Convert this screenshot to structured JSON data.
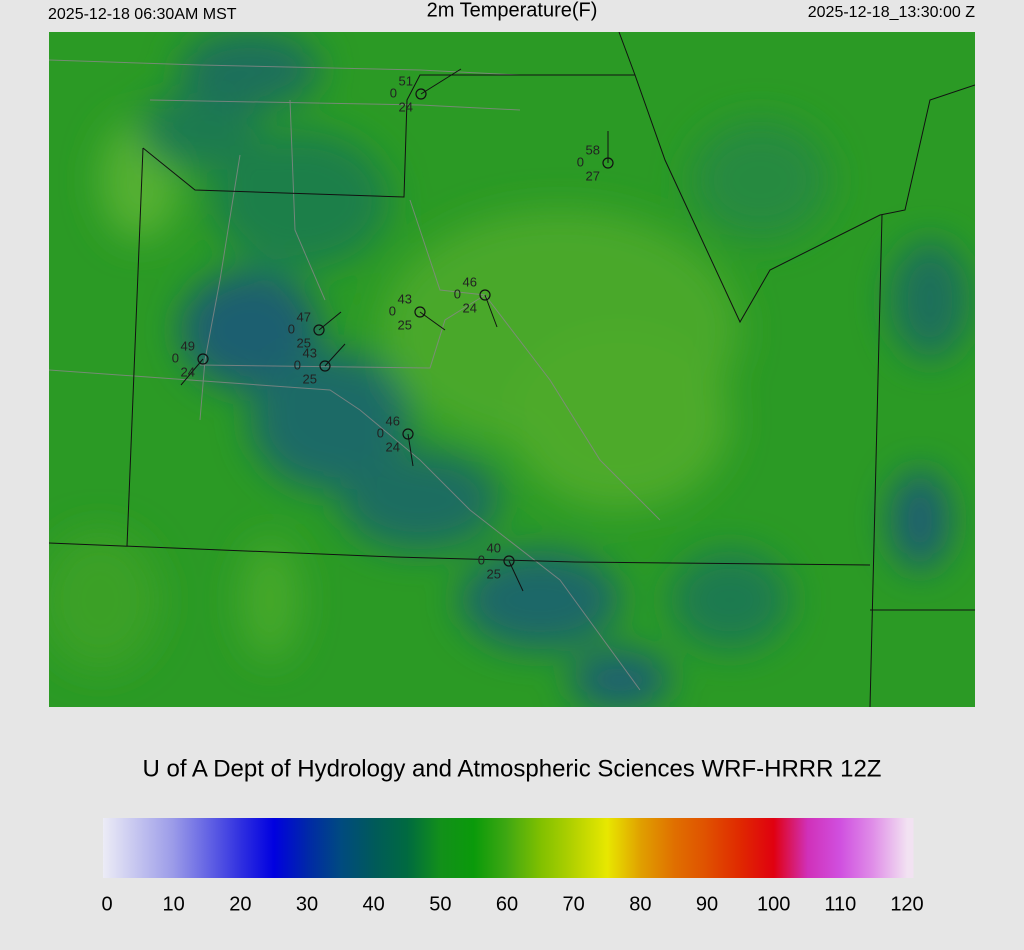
{
  "header": {
    "left": "2025-12-18 06:30AM MST",
    "title": "2m Temperature(F)",
    "right": "2025-12-18_13:30:00 Z"
  },
  "stations": [
    {
      "temperature": 51,
      "wind": 0,
      "dewpoint": 24
    },
    {
      "temperature": 58,
      "wind": 0,
      "dewpoint": 27
    },
    {
      "temperature": 46,
      "wind": 0,
      "dewpoint": 24
    },
    {
      "temperature": 43,
      "wind": 0,
      "dewpoint": 25
    },
    {
      "temperature": 47,
      "wind": 0,
      "dewpoint": 25
    },
    {
      "temperature": 43,
      "wind": 0,
      "dewpoint": 25
    },
    {
      "temperature": 49,
      "wind": 0,
      "dewpoint": 24
    },
    {
      "temperature": 46,
      "wind": 0,
      "dewpoint": 24
    },
    {
      "temperature": 40,
      "wind": 0,
      "dewpoint": 25
    }
  ],
  "credit": "U of A Dept of Hydrology and Atmospheric Sciences WRF-HRRR 12Z",
  "colorbar": {
    "range": [
      0,
      120
    ],
    "ticks": [
      0,
      10,
      20,
      30,
      40,
      50,
      60,
      70,
      80,
      90,
      100,
      110,
      120
    ],
    "stops": [
      {
        "value": 0,
        "color": "#ececf6"
      },
      {
        "value": 10,
        "color": "#9a9ae8"
      },
      {
        "value": 20,
        "color": "#3030e0"
      },
      {
        "value": 25,
        "color": "#0000e0"
      },
      {
        "value": 30,
        "color": "#0028a8"
      },
      {
        "value": 35,
        "color": "#004a80"
      },
      {
        "value": 40,
        "color": "#005a5a"
      },
      {
        "value": 45,
        "color": "#006a40"
      },
      {
        "value": 50,
        "color": "#12901a"
      },
      {
        "value": 55,
        "color": "#0a9a0a"
      },
      {
        "value": 60,
        "color": "#40a812"
      },
      {
        "value": 65,
        "color": "#80c000"
      },
      {
        "value": 70,
        "color": "#b4d200"
      },
      {
        "value": 75,
        "color": "#e8e800"
      },
      {
        "value": 80,
        "color": "#e0a000"
      },
      {
        "value": 85,
        "color": "#e07000"
      },
      {
        "value": 90,
        "color": "#e05000"
      },
      {
        "value": 95,
        "color": "#e02800"
      },
      {
        "value": 100,
        "color": "#e00010"
      },
      {
        "value": 105,
        "color": "#d030b8"
      },
      {
        "value": 110,
        "color": "#d050e0"
      },
      {
        "value": 115,
        "color": "#e090e8"
      },
      {
        "value": 120,
        "color": "#f2e2f2"
      }
    ]
  }
}
